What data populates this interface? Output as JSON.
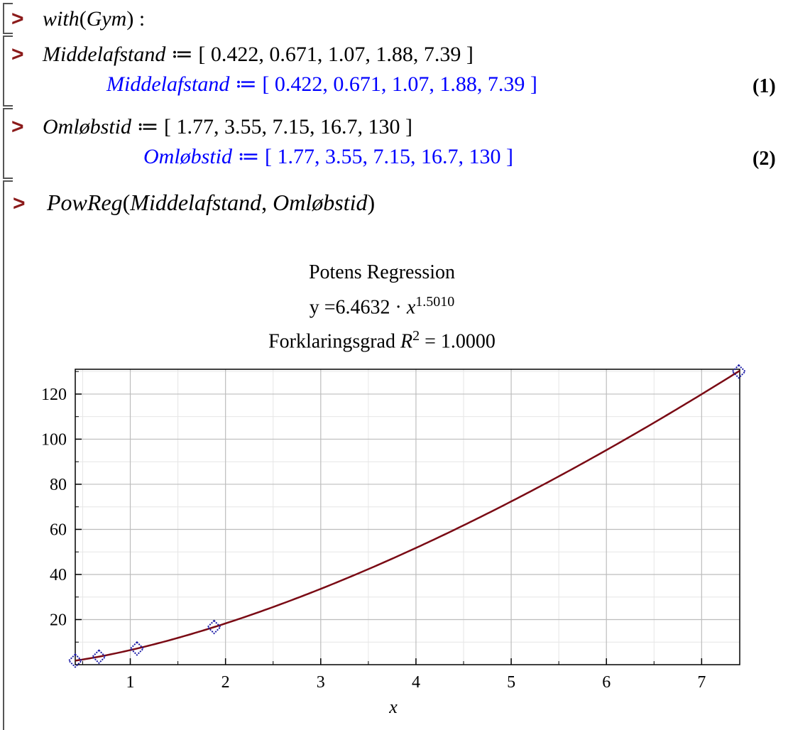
{
  "worksheet": {
    "prompt_symbol": ">",
    "groups": [
      {
        "input": {
          "fn": "with",
          "arg": "Gym",
          "suffix": ":"
        },
        "output": null
      },
      {
        "input": {
          "name": "Middelafstand",
          "op": "≔",
          "value": "[ 0.422, 0.671, 1.07, 1.88, 7.39 ]"
        },
        "output": {
          "name": "Middelafstand",
          "op": "≔",
          "value": "[ 0.422, 0.671, 1.07, 1.88, 7.39 ]",
          "label": "(1)"
        }
      },
      {
        "input": {
          "name": "Omløbstid",
          "op": "≔",
          "value": "[ 1.77, 3.55, 7.15, 16.7, 130 ]"
        },
        "output": {
          "name": "Omløbstid",
          "op": "≔",
          "value": "[ 1.77, 3.55, 7.15, 16.7, 130 ]",
          "label": "(2)"
        }
      },
      {
        "input": {
          "fn": "PowReg",
          "arg1": "Middelafstand",
          "sep": ",",
          "arg2": "Omløbstid"
        }
      }
    ]
  },
  "colors": {
    "prompt": "#8b1a1a",
    "output": "#0000ff",
    "curve": "#7a0a14",
    "points": "#1a1aa6",
    "grid_major": "#bdbdbd",
    "grid_minor": "#e6e6e6"
  },
  "chart_data": {
    "type": "scatter",
    "title": "Potens Regression",
    "subtitle_equation": {
      "prefix": "y =6.4632 · ",
      "var": "x",
      "exponent": "1.5010"
    },
    "r2_line": {
      "prefix": "Forklaringsgrad ",
      "var": "R",
      "sup": "2",
      "suffix": " = 1.0000"
    },
    "xlabel": "x",
    "ylabel": "",
    "xlim": [
      0.422,
      7.4
    ],
    "ylim": [
      0,
      131
    ],
    "x_ticks": [
      1,
      2,
      3,
      4,
      5,
      6,
      7
    ],
    "x_tick_labels": [
      "1",
      "2",
      "3",
      "4",
      "5",
      "6",
      "7"
    ],
    "y_ticks": [
      20,
      40,
      60,
      80,
      100,
      120
    ],
    "y_tick_labels": [
      "20",
      "40",
      "60",
      "80",
      "100",
      "120"
    ],
    "grid": true,
    "series": [
      {
        "kind": "points",
        "marker": "diamond",
        "x": [
          0.422,
          0.671,
          1.07,
          1.88,
          7.39
        ],
        "y": [
          1.77,
          3.55,
          7.15,
          16.7,
          130
        ]
      },
      {
        "kind": "fit-curve",
        "coefficient": 6.4632,
        "exponent": 1.501
      }
    ]
  }
}
